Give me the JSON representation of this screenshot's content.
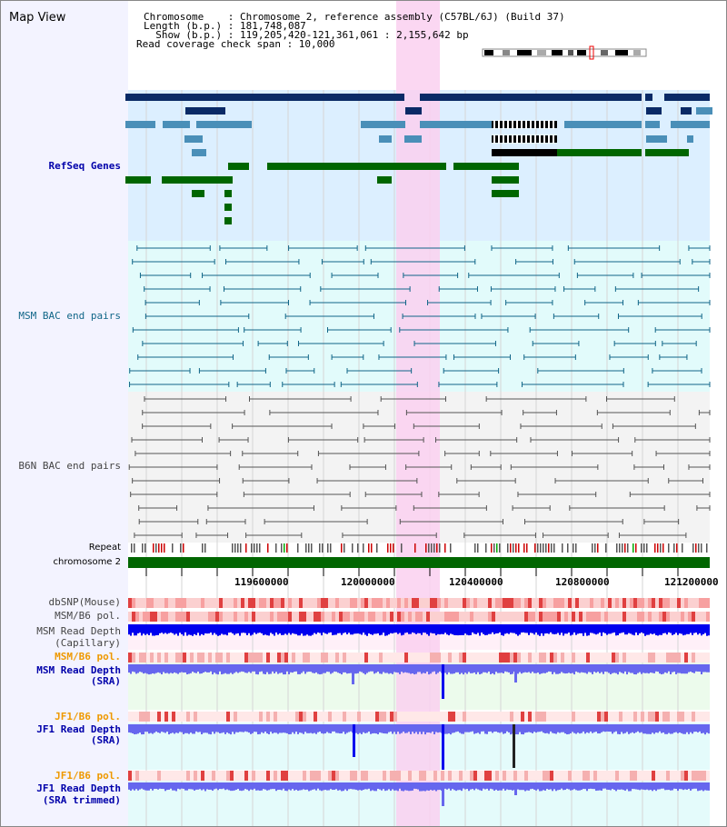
{
  "title": "Map View",
  "info": {
    "chromosome": "Chromosome    : Chromosome 2, reference assembly (C57BL/6J) (Build 37)",
    "length": "Length (b.p.) : 181,748,087",
    "show": "  Show (b.p.) : 119,205,420-121,361,061 : 2,155,642 bp",
    "coverage": "Read coverage check span : 10,000"
  },
  "tracks": {
    "refseq": "RefSeq Genes",
    "msm_bac": "MSM BAC end pairs",
    "b6n_bac": "B6N BAC end pairs",
    "repeat": "Repeat",
    "chromosome": "chromosome 2",
    "dbsnp": "dbSNP(Mouse)",
    "msm_b6_pol_1": "MSM/B6 pol.",
    "msm_read_depth_cap_1": "MSM Read Depth",
    "msm_read_depth_cap_2": "(Capillary)",
    "msm_b6_pol_2": "MSM/B6 pol.",
    "msm_read_depth_sra_1": "MSM Read Depth",
    "msm_read_depth_sra_2": "(SRA)",
    "jf1_b6_pol_1": "JF1/B6 pol.",
    "jf1_read_depth_sra_1": "JF1 Read Depth",
    "jf1_read_depth_sra_2": "(SRA)",
    "jf1_b6_pol_2": "JF1/B6 pol.",
    "jf1_read_depth_trim_1": "JF1 Read Depth",
    "jf1_read_depth_trim_2": "(SRA trimmed)"
  },
  "axis": {
    "ticks": [
      "119600000",
      "120000000",
      "120400000",
      "120800000",
      "121200000"
    ]
  },
  "colors": {
    "highlight": "#fad0f0",
    "refseq_bg": "#dcefff",
    "msm_bg": "#e2fbfb",
    "b6n_bg": "#f3f3f3",
    "gene_navy": "#0a2a66",
    "gene_blue": "#4a8fb8",
    "gene_green": "#006600",
    "bac_teal": "#116688",
    "bac_gray": "#555555",
    "depth_blue": "#0000ee",
    "depth_violet": "#6666ee",
    "chrom_green": "#006600"
  }
}
